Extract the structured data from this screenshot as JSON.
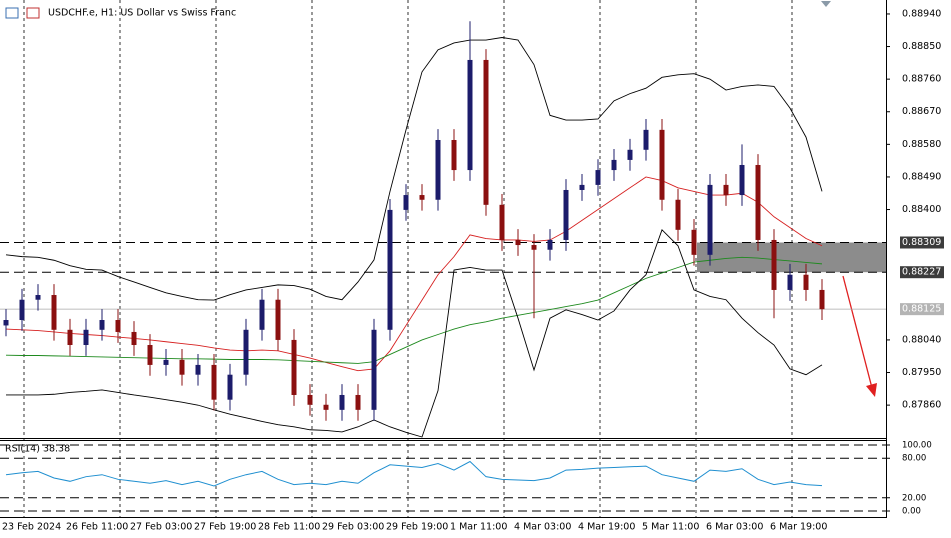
{
  "chart_data": [
    {
      "type": "candlestick",
      "title": "USDCHF.e, H1:  US Dollar vs Swiss Franc",
      "categories": [
        "23 Feb 2024",
        null,
        null,
        null,
        "26 Feb 11:00",
        null,
        null,
        null,
        "27 Feb 03:00",
        null,
        null,
        null,
        "27 Feb 19:00",
        null,
        null,
        null,
        "28 Feb 11:00",
        null,
        null,
        null,
        "29 Feb 03:00",
        null,
        null,
        null,
        "29 Feb 19:00",
        null,
        null,
        null,
        "1 Mar 11:00",
        null,
        null,
        null,
        "4 Mar 03:00",
        null,
        null,
        null,
        "4 Mar 19:00",
        null,
        null,
        null,
        "5 Mar 11:00",
        null,
        null,
        null,
        "6 Mar 03:00",
        null,
        null,
        null,
        "6 Mar 19:00",
        null,
        null,
        null
      ],
      "open": [
        0.8808,
        0.88095,
        0.88151,
        0.88164,
        0.88068,
        0.88026,
        0.88068,
        0.88095,
        0.88062,
        0.88026,
        0.87971,
        0.87985,
        0.87944,
        0.87971,
        0.87875,
        0.87944,
        0.88068,
        0.88151,
        0.8804,
        0.87888,
        0.87861,
        0.87847,
        0.87888,
        0.87847,
        0.88068,
        0.88399,
        0.8844,
        0.88427,
        0.88592,
        0.88509,
        0.88813,
        0.88413,
        0.88316,
        0.88302,
        0.88289,
        0.88316,
        0.88454,
        0.88468,
        0.88509,
        0.88537,
        0.88565,
        0.8862,
        0.88427,
        0.88344,
        0.88275,
        0.88468,
        0.8844,
        0.88523,
        0.88316,
        0.88178,
        0.8822,
        0.88178
      ],
      "high": [
        0.88125,
        0.88181,
        0.88194,
        0.88194,
        0.88098,
        0.88098,
        0.88125,
        0.88125,
        0.88092,
        0.88056,
        0.88015,
        0.88015,
        0.88001,
        0.88001,
        0.87974,
        0.88098,
        0.88181,
        0.88181,
        0.8807,
        0.87918,
        0.87891,
        0.87918,
        0.87918,
        0.88098,
        0.88429,
        0.8847,
        0.8847,
        0.88622,
        0.88622,
        0.8892,
        0.88843,
        0.88443,
        0.88346,
        0.88332,
        0.88346,
        0.88484,
        0.88498,
        0.88539,
        0.88567,
        0.88595,
        0.8865,
        0.8865,
        0.88457,
        0.88374,
        0.88498,
        0.88498,
        0.8858,
        0.88553,
        0.88346,
        0.8825,
        0.8825,
        0.88208
      ],
      "low": [
        0.8805,
        0.88065,
        0.88121,
        0.88038,
        0.87996,
        0.87996,
        0.88038,
        0.88032,
        0.87996,
        0.87941,
        0.87941,
        0.87914,
        0.87914,
        0.87845,
        0.87845,
        0.87914,
        0.88038,
        0.8801,
        0.87858,
        0.87831,
        0.87817,
        0.87817,
        0.87817,
        0.87817,
        0.88038,
        0.88369,
        0.88397,
        0.88397,
        0.88479,
        0.88479,
        0.88383,
        0.88286,
        0.88272,
        0.881,
        0.88259,
        0.88286,
        0.88424,
        0.88438,
        0.88479,
        0.88507,
        0.88535,
        0.88397,
        0.88314,
        0.88245,
        0.88245,
        0.8841,
        0.8841,
        0.88286,
        0.881,
        0.88148,
        0.88148,
        0.88095
      ],
      "close": [
        0.88095,
        0.88151,
        0.88164,
        0.88068,
        0.88026,
        0.88068,
        0.88095,
        0.88062,
        0.88026,
        0.87971,
        0.87985,
        0.87944,
        0.87971,
        0.87875,
        0.87944,
        0.88068,
        0.88151,
        0.8804,
        0.87888,
        0.87861,
        0.87847,
        0.87888,
        0.87847,
        0.88068,
        0.88399,
        0.8844,
        0.88427,
        0.88592,
        0.88509,
        0.88813,
        0.88413,
        0.88316,
        0.88302,
        0.88289,
        0.88316,
        0.88454,
        0.88468,
        0.88509,
        0.88537,
        0.88565,
        0.8862,
        0.88427,
        0.88344,
        0.88275,
        0.88468,
        0.8844,
        0.88523,
        0.88316,
        0.88178,
        0.8822,
        0.88178,
        0.88125
      ],
      "up_color": "#1c1c6b",
      "down_color": "#8b1010",
      "overlays": [
        {
          "color": "#d62020",
          "values": [
            0.8807,
            0.88068,
            0.88066,
            0.88062,
            0.88058,
            0.88055,
            0.88052,
            0.88048,
            0.88044,
            0.8804,
            0.88035,
            0.8803,
            0.88025,
            0.88018,
            0.88012,
            0.8801,
            0.88012,
            0.8801,
            0.88,
            0.8799,
            0.87978,
            0.87966,
            0.87955,
            0.8796,
            0.8801,
            0.8808,
            0.8815,
            0.8822,
            0.8827,
            0.8833,
            0.8832,
            0.88316,
            0.88316,
            0.88312,
            0.88316,
            0.8834,
            0.8837,
            0.884,
            0.8843,
            0.8846,
            0.8849,
            0.8848,
            0.8846,
            0.8845,
            0.8844,
            0.8844,
            0.88445,
            0.8842,
            0.8838,
            0.8835,
            0.8832,
            0.883
          ]
        },
        {
          "color": "#1e8a1e",
          "values": [
            0.87998,
            0.87997,
            0.87997,
            0.87996,
            0.87995,
            0.87994,
            0.87993,
            0.87992,
            0.87991,
            0.8799,
            0.87989,
            0.87988,
            0.87988,
            0.87987,
            0.87986,
            0.87986,
            0.87986,
            0.87985,
            0.87983,
            0.87981,
            0.87979,
            0.87977,
            0.87975,
            0.8798,
            0.88,
            0.8802,
            0.8804,
            0.88055,
            0.8807,
            0.88082,
            0.8809,
            0.881,
            0.88108,
            0.88116,
            0.88124,
            0.88132,
            0.8814,
            0.8815,
            0.8817,
            0.8819,
            0.8821,
            0.88225,
            0.8824,
            0.88255,
            0.8826,
            0.88265,
            0.88268,
            0.88266,
            0.88262,
            0.88258,
            0.88254,
            0.8825
          ]
        },
        {
          "color": "#000000",
          "values": [
            0.88275,
            0.8827,
            0.88268,
            0.8826,
            0.88245,
            0.88235,
            0.88233,
            0.88215,
            0.882,
            0.88185,
            0.8817,
            0.8816,
            0.88151,
            0.8815,
            0.88165,
            0.88178,
            0.88185,
            0.88192,
            0.8819,
            0.8818,
            0.8816,
            0.88151,
            0.882,
            0.88261,
            0.8845,
            0.8862,
            0.8878,
            0.88841,
            0.8886,
            0.88868,
            0.88868,
            0.88875,
            0.88868,
            0.888,
            0.8866,
            0.88647,
            0.88647,
            0.8865,
            0.887,
            0.8872,
            0.88735,
            0.88765,
            0.88772,
            0.88775,
            0.8876,
            0.8873,
            0.8874,
            0.88744,
            0.8874,
            0.8868,
            0.886,
            0.8845
          ]
        },
        {
          "color": "#000000",
          "values": [
            0.87888,
            0.87888,
            0.87888,
            0.8789,
            0.87895,
            0.87898,
            0.87902,
            0.87895,
            0.87888,
            0.87882,
            0.87875,
            0.87868,
            0.8786,
            0.87847,
            0.87835,
            0.87825,
            0.87815,
            0.87806,
            0.878,
            0.87792,
            0.8779,
            0.87786,
            0.878,
            0.87819,
            0.878,
            0.87785,
            0.87772,
            0.879,
            0.88233,
            0.8824,
            0.88233,
            0.88233,
            0.881,
            0.87957,
            0.881,
            0.88123,
            0.8811,
            0.88095,
            0.8812,
            0.88178,
            0.8822,
            0.88344,
            0.883,
            0.88178,
            0.8816,
            0.88151,
            0.881,
            0.8806,
            0.88026,
            0.8796,
            0.87944,
            0.87971
          ]
        }
      ],
      "ylim": [
        0.87772,
        0.88973
      ],
      "yticks": [
        {
          "value": 0.8894,
          "label": "0.88940"
        },
        {
          "value": 0.8885,
          "label": "0.88850"
        },
        {
          "value": 0.8876,
          "label": "0.88760"
        },
        {
          "value": 0.8867,
          "label": "0.88670"
        },
        {
          "value": 0.8858,
          "label": "0.88580"
        },
        {
          "value": 0.8849,
          "label": "0.88490"
        },
        {
          "value": 0.884,
          "label": "0.88400"
        },
        {
          "value": 0.8804,
          "label": "0.88040"
        },
        {
          "value": 0.8795,
          "label": "0.87950"
        },
        {
          "value": 0.8786,
          "label": "0.87860"
        }
      ],
      "levels": [
        0.88309,
        0.88227
      ],
      "last_price": 0.88125,
      "grid": true
    },
    {
      "type": "line",
      "title": "RSI(14) 38.38",
      "color": "#1f8fd0",
      "values": [
        55,
        58,
        60,
        50,
        45,
        52,
        55,
        48,
        45,
        42,
        46,
        40,
        45,
        38,
        48,
        55,
        60,
        48,
        40,
        42,
        40,
        45,
        42,
        58,
        70,
        68,
        66,
        72,
        62,
        75,
        52,
        48,
        47,
        46,
        50,
        62,
        63,
        65,
        66,
        67,
        68,
        55,
        50,
        45,
        62,
        60,
        64,
        48,
        40,
        44,
        40,
        38.38
      ],
      "ylim": [
        0,
        100
      ],
      "yticks": [
        {
          "value": 100,
          "label": "100.00"
        },
        {
          "value": 80,
          "label": "80.00"
        },
        {
          "value": 20,
          "label": "20.00"
        },
        {
          "value": 0,
          "label": "0.00"
        }
      ]
    }
  ]
}
